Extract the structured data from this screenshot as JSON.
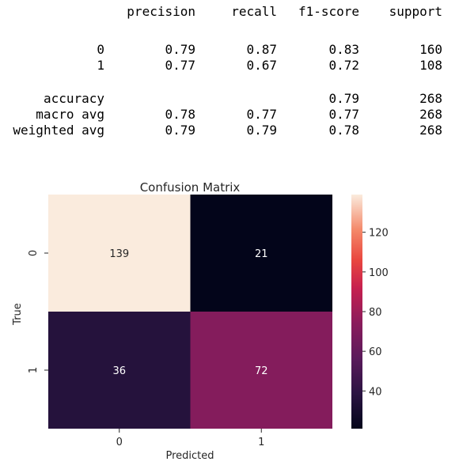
{
  "report": {
    "headers": [
      "precision",
      "recall",
      "f1-score",
      "support"
    ],
    "rows": [
      {
        "label": "0",
        "precision": "0.79",
        "recall": "0.87",
        "f1": "0.83",
        "support": "160"
      },
      {
        "label": "1",
        "precision": "0.77",
        "recall": "0.67",
        "f1": "0.72",
        "support": "108"
      },
      {
        "label": "accuracy",
        "precision": "",
        "recall": "",
        "f1": "0.79",
        "support": "268"
      },
      {
        "label": "macro avg",
        "precision": "0.78",
        "recall": "0.77",
        "f1": "0.77",
        "support": "268"
      },
      {
        "label": "weighted avg",
        "precision": "0.79",
        "recall": "0.79",
        "f1": "0.78",
        "support": "268"
      }
    ]
  },
  "chart_data": {
    "type": "heatmap",
    "title": "Confusion Matrix",
    "xlabel": "Predicted",
    "ylabel": "True",
    "x_categories": [
      "0",
      "1"
    ],
    "y_categories": [
      "0",
      "1"
    ],
    "values": [
      [
        139,
        21
      ],
      [
        36,
        72
      ]
    ],
    "annotations": [
      [
        "139",
        "21"
      ],
      [
        "36",
        "72"
      ]
    ],
    "colormap": "rocket",
    "colorbar": {
      "range": [
        21,
        139
      ],
      "ticks": [
        "120",
        "100",
        "80",
        "60",
        "40"
      ]
    }
  }
}
